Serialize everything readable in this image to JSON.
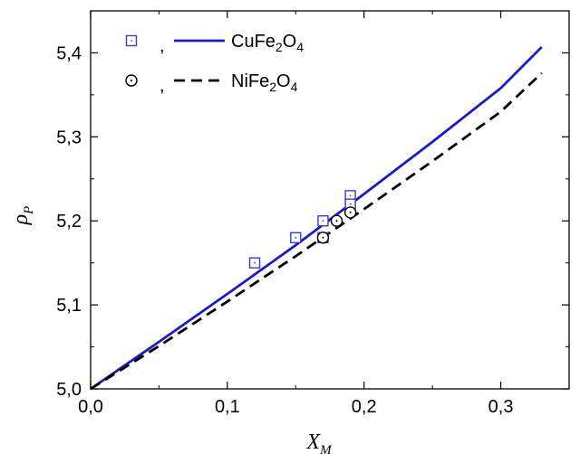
{
  "chart_data": {
    "type": "line",
    "xlabel": "X",
    "xlabel_sub": "M",
    "ylabel": "ρ",
    "ylabel_sub": "P",
    "xlim": [
      0.0,
      0.35
    ],
    "ylim": [
      5.0,
      5.45
    ],
    "x_ticks": [
      {
        "value": 0.0,
        "label": "0,0"
      },
      {
        "value": 0.1,
        "label": "0,1"
      },
      {
        "value": 0.2,
        "label": "0,2"
      },
      {
        "value": 0.3,
        "label": "0,3"
      }
    ],
    "y_ticks": [
      {
        "value": 5.0,
        "label": "5,0"
      },
      {
        "value": 5.1,
        "label": "5,1"
      },
      {
        "value": 5.2,
        "label": "5,2"
      },
      {
        "value": 5.3,
        "label": "5,3"
      },
      {
        "value": 5.4,
        "label": "5,4"
      }
    ],
    "legend_placement": "top-left",
    "series": [
      {
        "name_parts": [
          "CuFe",
          "2",
          "O",
          "4"
        ],
        "color": "#1a1acc",
        "line_style": "solid",
        "marker": "square",
        "marker_color": "#3a3ad8",
        "line_x": [
          0.0,
          0.05,
          0.1,
          0.15,
          0.2,
          0.25,
          0.3,
          0.33
        ],
        "line_y": [
          5.0,
          5.056,
          5.113,
          5.171,
          5.232,
          5.294,
          5.358,
          5.407
        ],
        "points": [
          {
            "x": 0.12,
            "y": 5.15
          },
          {
            "x": 0.15,
            "y": 5.18
          },
          {
            "x": 0.17,
            "y": 5.2
          },
          {
            "x": 0.17,
            "y": 5.18
          },
          {
            "x": 0.19,
            "y": 5.23
          },
          {
            "x": 0.19,
            "y": 5.22
          }
        ]
      },
      {
        "name_parts": [
          "NiFe",
          "2",
          "O",
          "4"
        ],
        "color": "#000000",
        "line_style": "dashed",
        "marker": "circle",
        "marker_color": "#000000",
        "line_x": [
          0.0,
          0.05,
          0.1,
          0.15,
          0.2,
          0.25,
          0.3,
          0.33
        ],
        "line_y": [
          5.0,
          5.051,
          5.104,
          5.158,
          5.214,
          5.271,
          5.33,
          5.376
        ],
        "points": [
          {
            "x": 0.17,
            "y": 5.18
          },
          {
            "x": 0.18,
            "y": 5.2
          },
          {
            "x": 0.19,
            "y": 5.21
          }
        ]
      }
    ]
  }
}
